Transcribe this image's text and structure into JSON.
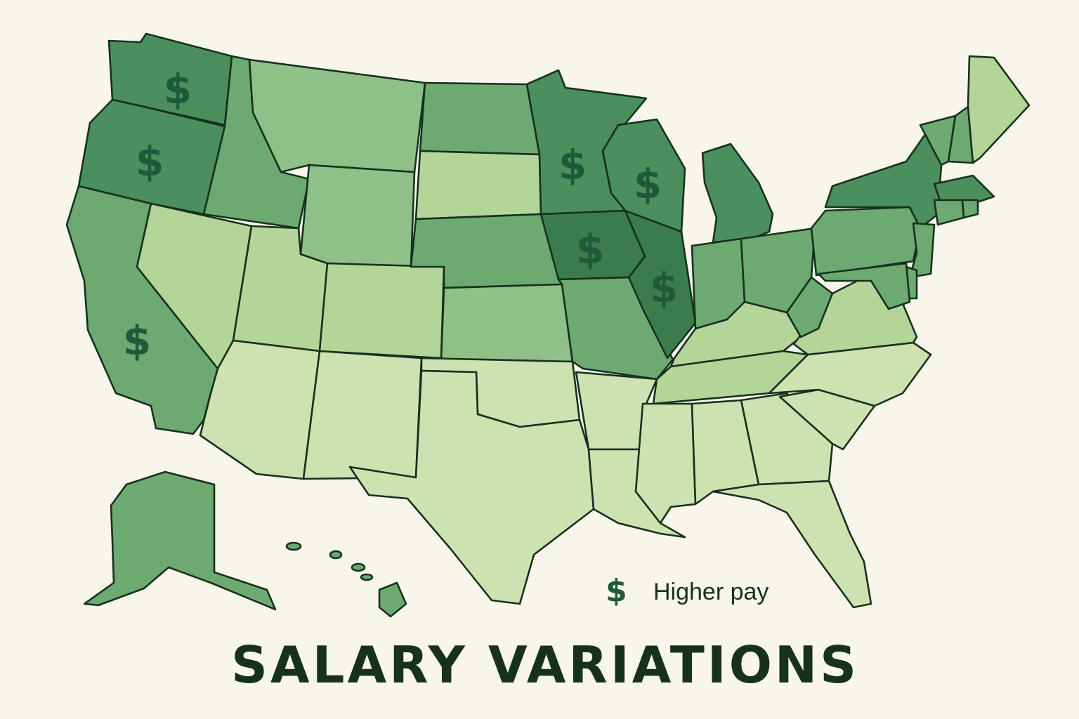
{
  "title": "SALARY VARIATIONS",
  "legend": {
    "symbol": "$",
    "label": "Higher pay"
  },
  "colors": {
    "background": "#f8f6ea",
    "border": "#17301f",
    "dollar": "#1f5a38",
    "tiers": {
      "1": "#cde2b0",
      "2": "#b4d598",
      "3": "#8fc087",
      "4": "#6daa71",
      "5": "#4b8f5c",
      "6": "#3a7c4c"
    }
  },
  "pay_tier_by_state": {
    "WA": 5,
    "OR": 5,
    "CA": 4,
    "ID": 4,
    "NV": 2,
    "UT": 2,
    "AZ": 1,
    "MT": 3,
    "WY": 3,
    "CO": 2,
    "NM": 1,
    "ND": 4,
    "SD": 2,
    "NE": 4,
    "KS": 3,
    "OK": 1,
    "TX": 1,
    "MN": 5,
    "IA": 6,
    "MO": 4,
    "AR": 1,
    "LA": 1,
    "WI": 5,
    "IL": 6,
    "MI": 5,
    "IN": 4,
    "OH": 4,
    "KY": 2,
    "TN": 2,
    "MS": 1,
    "AL": 1,
    "GA": 1,
    "FL": 1,
    "SC": 1,
    "NC": 1,
    "VA": 2,
    "WV": 4,
    "PA": 4,
    "NY": 5,
    "VT": 4,
    "NH": 4,
    "ME": 2,
    "MA": 5,
    "CT": 4,
    "RI": 4,
    "NJ": 4,
    "DE": 4,
    "MD": 4,
    "AK": 4,
    "HI": 4
  },
  "higher_pay_states": [
    "WA",
    "OR",
    "CA",
    "MN",
    "WI",
    "IA",
    "IL"
  ]
}
